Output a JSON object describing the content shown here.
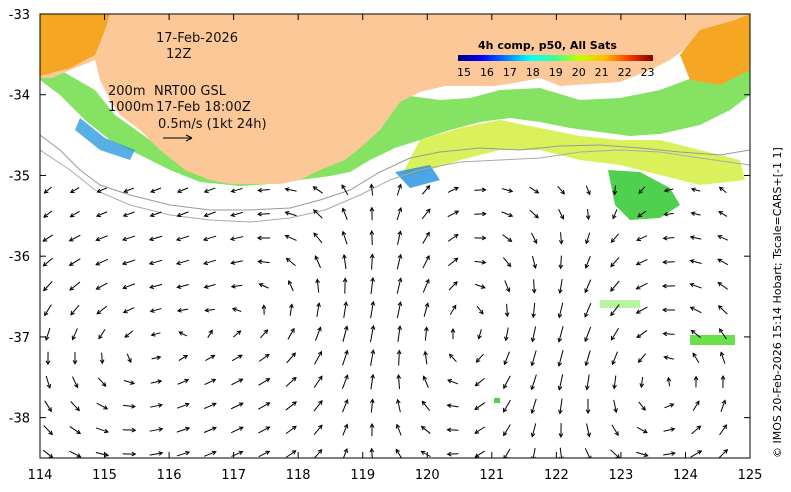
{
  "map": {
    "title_date": "17-Feb-2026",
    "title_time": "12Z",
    "depth_200": "200m",
    "depth_1000": "1000m",
    "product": "NRT00 GSL",
    "product_time": "17-Feb 18:00Z",
    "scale_label": "0.5m/s (1kt 24h)",
    "credit": "© IMOS 20-Feb-2026 15:14 Hobart; Tscale=CARS+[-1 1]",
    "lon_range": [
      114,
      125
    ],
    "lat_range": [
      -38.5,
      -33
    ],
    "lon_ticks": [
      "114",
      "115",
      "116",
      "117",
      "118",
      "119",
      "120",
      "121",
      "122",
      "123",
      "124",
      "125"
    ],
    "lat_ticks": [
      "-33",
      "-34",
      "-35",
      "-36",
      "-37",
      "-38"
    ],
    "land_color": "#FCC898"
  },
  "colorbar": {
    "title": "4h comp, p50, All Sats",
    "range": [
      15,
      23.5
    ],
    "labels": [
      "15",
      "16",
      "17",
      "18",
      "19",
      "20",
      "21",
      "22",
      "23"
    ]
  }
}
